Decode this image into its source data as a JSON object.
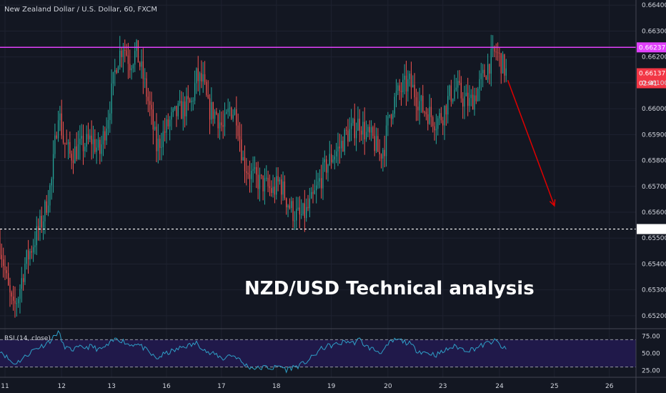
{
  "chart_data": {
    "type": "candlestick",
    "title": "New Zealand Dollar / U.S. Dollar, 60, FXCM",
    "overlay_text": "NZD/USD Technical analysis",
    "ylim": [
      0.6515,
      0.6642
    ],
    "y_ticks": [
      "0.66400",
      "0.66300",
      "0.66200",
      "0.66100",
      "0.66000",
      "0.65900",
      "0.65800",
      "0.65700",
      "0.65600",
      "0.65500",
      "0.65400",
      "0.65300",
      "0.65200"
    ],
    "x_ticks": [
      "11",
      "12",
      "13",
      "16",
      "17",
      "18",
      "19",
      "20",
      "23",
      "24",
      "25",
      "26"
    ],
    "x_tick_index": [
      3,
      37,
      67,
      100,
      133,
      166,
      199,
      233,
      266,
      300,
      333,
      366
    ],
    "x_range": [
      0,
      382
    ],
    "grid": true,
    "price_levels": [
      {
        "label": "0.66237",
        "value": 0.66237,
        "color": "#e040fb",
        "style": "solid"
      },
      {
        "label": "0.65535",
        "value": 0.65535,
        "color": "#ffffff",
        "style": "dashed"
      }
    ],
    "current_price": {
      "label": "0.66137",
      "value": 0.66137,
      "color": "#f23645",
      "countdown": "02:41"
    },
    "arrow": {
      "from": [
        305,
        0.6611
      ],
      "to": [
        333,
        0.65625
      ],
      "color": "#e00000"
    },
    "colors": {
      "up": "#26a69a",
      "down": "#ef5350",
      "background": "#131722",
      "grid": "#1e2230"
    },
    "anchors": [
      [
        0,
        0.6548
      ],
      [
        5,
        0.653
      ],
      [
        8,
        0.6522
      ],
      [
        11,
        0.6528
      ],
      [
        15,
        0.654
      ],
      [
        20,
        0.6548
      ],
      [
        26,
        0.6558
      ],
      [
        31,
        0.6572
      ],
      [
        35,
        0.66
      ],
      [
        38,
        0.6588
      ],
      [
        42,
        0.6582
      ],
      [
        48,
        0.6585
      ],
      [
        55,
        0.6588
      ],
      [
        60,
        0.6583
      ],
      [
        65,
        0.6598
      ],
      [
        70,
        0.6618
      ],
      [
        74,
        0.6625
      ],
      [
        78,
        0.6618
      ],
      [
        82,
        0.6622
      ],
      [
        86,
        0.6612
      ],
      [
        90,
        0.66
      ],
      [
        94,
        0.6585
      ],
      [
        98,
        0.659
      ],
      [
        102,
        0.6595
      ],
      [
        106,
        0.6598
      ],
      [
        110,
        0.66
      ],
      [
        115,
        0.6602
      ],
      [
        118,
        0.6612
      ],
      [
        122,
        0.661
      ],
      [
        125,
        0.66
      ],
      [
        130,
        0.6598
      ],
      [
        134,
        0.6592
      ],
      [
        138,
        0.66
      ],
      [
        142,
        0.6598
      ],
      [
        146,
        0.658
      ],
      [
        150,
        0.6575
      ],
      [
        155,
        0.6572
      ],
      [
        160,
        0.657
      ],
      [
        164,
        0.6568
      ],
      [
        168,
        0.6572
      ],
      [
        172,
        0.6565
      ],
      [
        176,
        0.656
      ],
      [
        180,
        0.6558
      ],
      [
        184,
        0.656
      ],
      [
        188,
        0.6565
      ],
      [
        192,
        0.6572
      ],
      [
        196,
        0.6578
      ],
      [
        200,
        0.6582
      ],
      [
        204,
        0.6585
      ],
      [
        208,
        0.659
      ],
      [
        212,
        0.6592
      ],
      [
        216,
        0.6595
      ],
      [
        220,
        0.659
      ],
      [
        224,
        0.6588
      ],
      [
        228,
        0.6582
      ],
      [
        231,
        0.6586
      ],
      [
        234,
        0.6598
      ],
      [
        238,
        0.6605
      ],
      [
        242,
        0.6608
      ],
      [
        246,
        0.661
      ],
      [
        250,
        0.6605
      ],
      [
        254,
        0.66
      ],
      [
        258,
        0.6598
      ],
      [
        262,
        0.6595
      ],
      [
        266,
        0.6598
      ],
      [
        270,
        0.6605
      ],
      [
        274,
        0.6608
      ],
      [
        278,
        0.6604
      ],
      [
        282,
        0.6602
      ],
      [
        286,
        0.6606
      ],
      [
        290,
        0.6612
      ],
      [
        294,
        0.6618
      ],
      [
        298,
        0.6622
      ],
      [
        301,
        0.6618
      ],
      [
        304,
        0.6614
      ]
    ],
    "rsi": {
      "label": "RSI (14, close)",
      "ylim": [
        15,
        85
      ],
      "levels": [
        70,
        30
      ],
      "y_ticks": [
        "75.00",
        "50.00",
        "25.00"
      ],
      "y_tick_values": [
        75,
        50,
        25
      ],
      "color": "#2e9fc7",
      "band_color": "#20194a",
      "anchors": [
        [
          0,
          55
        ],
        [
          5,
          42
        ],
        [
          8,
          35
        ],
        [
          11,
          38
        ],
        [
          15,
          45
        ],
        [
          20,
          55
        ],
        [
          26,
          62
        ],
        [
          31,
          70
        ],
        [
          35,
          82
        ],
        [
          38,
          62
        ],
        [
          42,
          55
        ],
        [
          48,
          58
        ],
        [
          55,
          60
        ],
        [
          60,
          55
        ],
        [
          65,
          62
        ],
        [
          70,
          72
        ],
        [
          74,
          68
        ],
        [
          78,
          62
        ],
        [
          82,
          65
        ],
        [
          86,
          58
        ],
        [
          90,
          50
        ],
        [
          94,
          42
        ],
        [
          98,
          48
        ],
        [
          102,
          52
        ],
        [
          106,
          55
        ],
        [
          110,
          60
        ],
        [
          115,
          62
        ],
        [
          118,
          65
        ],
        [
          122,
          58
        ],
        [
          125,
          50
        ],
        [
          130,
          48
        ],
        [
          134,
          42
        ],
        [
          138,
          48
        ],
        [
          142,
          45
        ],
        [
          146,
          35
        ],
        [
          150,
          30
        ],
        [
          155,
          28
        ],
        [
          160,
          30
        ],
        [
          164,
          28
        ],
        [
          168,
          32
        ],
        [
          172,
          26
        ],
        [
          176,
          30
        ],
        [
          180,
          32
        ],
        [
          184,
          38
        ],
        [
          188,
          45
        ],
        [
          192,
          55
        ],
        [
          196,
          60
        ],
        [
          200,
          62
        ],
        [
          204,
          64
        ],
        [
          208,
          68
        ],
        [
          212,
          65
        ],
        [
          216,
          70
        ],
        [
          220,
          60
        ],
        [
          224,
          56
        ],
        [
          228,
          52
        ],
        [
          231,
          55
        ],
        [
          234,
          65
        ],
        [
          238,
          70
        ],
        [
          242,
          68
        ],
        [
          246,
          64
        ],
        [
          250,
          55
        ],
        [
          254,
          52
        ],
        [
          258,
          50
        ],
        [
          262,
          48
        ],
        [
          266,
          52
        ],
        [
          270,
          58
        ],
        [
          274,
          60
        ],
        [
          278,
          56
        ],
        [
          282,
          55
        ],
        [
          286,
          58
        ],
        [
          290,
          62
        ],
        [
          294,
          66
        ],
        [
          298,
          68
        ],
        [
          301,
          60
        ],
        [
          304,
          55
        ]
      ]
    }
  }
}
